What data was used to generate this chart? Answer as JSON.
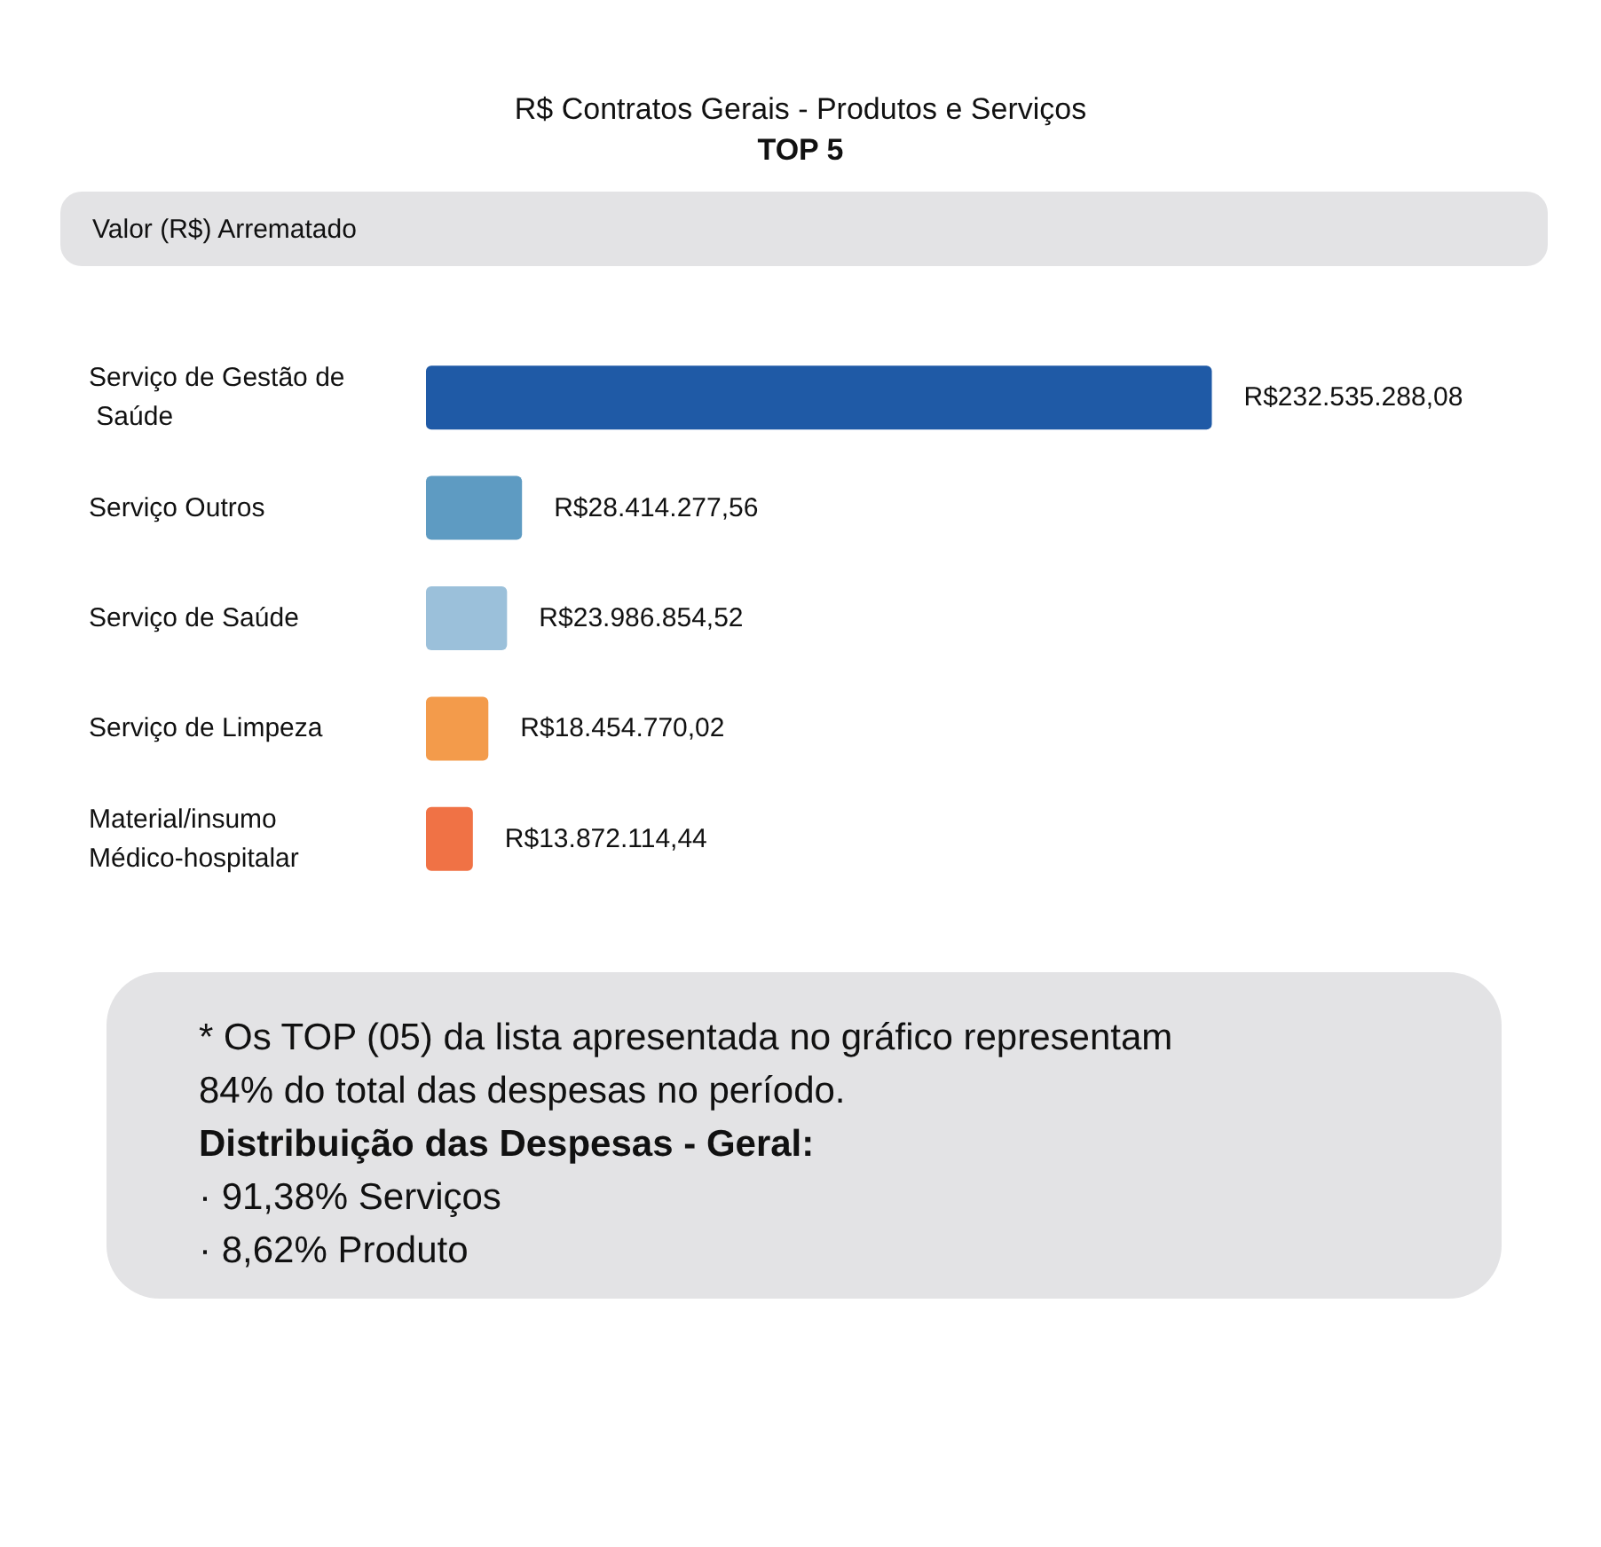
{
  "chart_data": {
    "type": "bar",
    "orientation": "horizontal",
    "title": "R$ Contratos Gerais - Produtos e Serviços",
    "subtitle": "TOP 5",
    "categories": [
      "Serviço de Gestão de Saúde",
      "Serviço Outros",
      "Serviço de Saúde",
      "Serviço de Limpeza",
      "Material/insumo Médico-hospitalar"
    ],
    "values": [
      232535288.08,
      28414277.56,
      23986854.52,
      18454770.02,
      13872114.44
    ],
    "colors": [
      "#1f5aa6",
      "#5e9bc2",
      "#9bc0da",
      "#f39b4b",
      "#f07245"
    ],
    "value_labels": [
      "R$232.535.288,08",
      "R$28.414.277,56",
      "R$23.986.854,52",
      "R$18.454.770,02",
      "R$13.872.114,44"
    ],
    "annotations": [
      "Valor (R$) Arrematado",
      "* Os TOP (05) da lista apresentada no gráfico representam 84% do total das despesas no período.",
      "Distribuição das Despesas - Geral:",
      "· 91,38% Serviços",
      "· 8,62% Produto"
    ]
  }
}
